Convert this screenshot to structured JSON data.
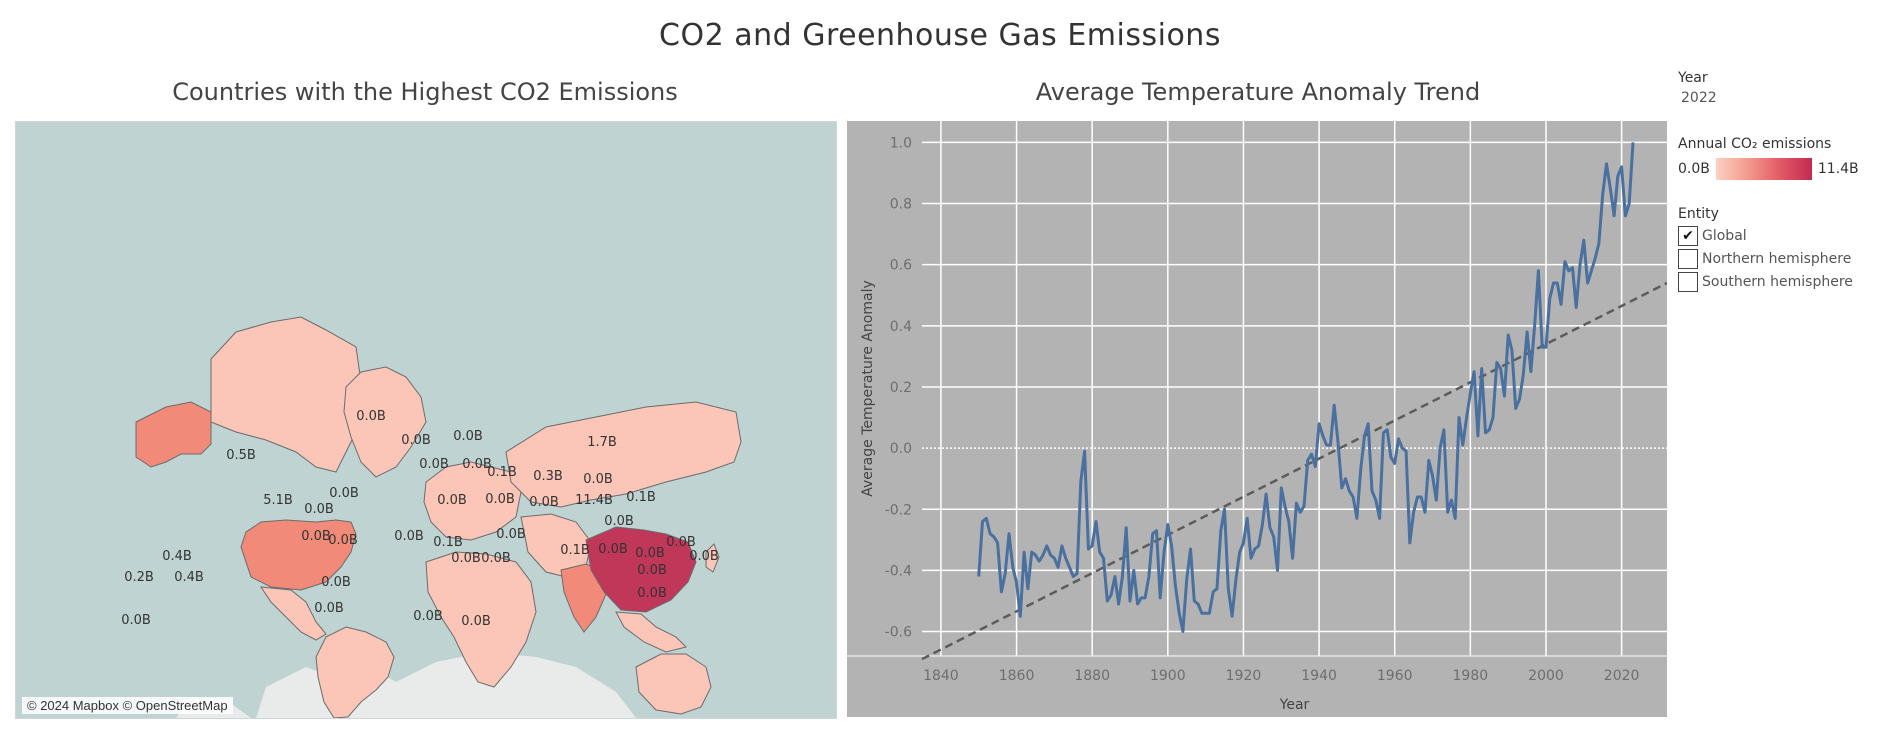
{
  "dashboard": {
    "title": "CO2 and Greenhouse Gas Emissions"
  },
  "map": {
    "title": "Countries with the Highest CO2 Emissions",
    "attribution": "© 2024 Mapbox © OpenStreetMap",
    "colors": {
      "water": "#bfd3d3",
      "land_low": "#fbc6b8",
      "land_mid": "#f18a79",
      "land_high": "#c0375a",
      "border": "#6b6b6b"
    },
    "labels": [
      "0.0B",
      "0.0B",
      "0.0B",
      "1.7B",
      "0.5B",
      "0.0B",
      "0.0B",
      "0.1B",
      "0.3B",
      "0.0B",
      "5.1B",
      "0.0B",
      "11.4B",
      "0.1B",
      "0.0B",
      "0.0B",
      "0.0B",
      "0.0B",
      "0.0B",
      "0.0B",
      "0.0B",
      "0.1B",
      "0.0B",
      "0.0B",
      "0.1B",
      "0.0B",
      "0.0B",
      "0.0B",
      "0.0B",
      "0.0B",
      "0.0B",
      "0.0B",
      "0.4B",
      "0.2B",
      "0.4B",
      "0.0B",
      "0.0B",
      "0.0B",
      "0.0B",
      "0.0B",
      "0.0B"
    ]
  },
  "chart": {
    "title": "Average Temperature Anomaly Trend"
  },
  "chart_data": {
    "type": "line",
    "title": "Average Temperature Anomaly Trend",
    "xlabel": "Year",
    "ylabel": "Average Temperature Anomaly",
    "xlim": [
      1835,
      2032
    ],
    "ylim": [
      -0.68,
      1.07
    ],
    "x_ticks": [
      1840,
      1860,
      1880,
      1900,
      1920,
      1940,
      1960,
      1980,
      2000,
      2020
    ],
    "y_ticks": [
      -0.6,
      -0.4,
      -0.2,
      0.0,
      0.2,
      0.4,
      0.6,
      0.8,
      1.0
    ],
    "grid": true,
    "series": [
      {
        "color": "#4a70a0",
        "x": [
          1850,
          1851,
          1852,
          1853,
          1854,
          1855,
          1856,
          1857,
          1858,
          1859,
          1860,
          1861,
          1862,
          1863,
          1864,
          1865,
          1866,
          1867,
          1868,
          1869,
          1870,
          1871,
          1872,
          1873,
          1874,
          1875,
          1876,
          1877,
          1878,
          1879,
          1880,
          1881,
          1882,
          1883,
          1884,
          1885,
          1886,
          1887,
          1888,
          1889,
          1890,
          1891,
          1892,
          1893,
          1894,
          1895,
          1896,
          1897,
          1898,
          1899,
          1900,
          1901,
          1902,
          1903,
          1904,
          1905,
          1906,
          1907,
          1908,
          1909,
          1910,
          1911,
          1912,
          1913,
          1914,
          1915,
          1916,
          1917,
          1918,
          1919,
          1920,
          1921,
          1922,
          1923,
          1924,
          1925,
          1926,
          1927,
          1928,
          1929,
          1930,
          1931,
          1932,
          1933,
          1934,
          1935,
          1936,
          1937,
          1938,
          1939,
          1940,
          1941,
          1942,
          1943,
          1944,
          1945,
          1946,
          1947,
          1948,
          1949,
          1950,
          1951,
          1952,
          1953,
          1954,
          1955,
          1956,
          1957,
          1958,
          1959,
          1960,
          1961,
          1962,
          1963,
          1964,
          1965,
          1966,
          1967,
          1968,
          1969,
          1970,
          1971,
          1972,
          1973,
          1974,
          1975,
          1976,
          1977,
          1978,
          1979,
          1980,
          1981,
          1982,
          1983,
          1984,
          1985,
          1986,
          1987,
          1988,
          1989,
          1990,
          1991,
          1992,
          1993,
          1994,
          1995,
          1996,
          1997,
          1998,
          1999,
          2000,
          2001,
          2002,
          2003,
          2004,
          2005,
          2006,
          2007,
          2008,
          2009,
          2010,
          2011,
          2012,
          2013,
          2014,
          2015,
          2016,
          2017,
          2018,
          2019,
          2020,
          2021,
          2022,
          2023
        ],
        "y": [
          -0.42,
          -0.24,
          -0.23,
          -0.28,
          -0.29,
          -0.31,
          -0.47,
          -0.41,
          -0.28,
          -0.39,
          -0.44,
          -0.55,
          -0.34,
          -0.46,
          -0.34,
          -0.35,
          -0.37,
          -0.35,
          -0.32,
          -0.35,
          -0.36,
          -0.39,
          -0.32,
          -0.36,
          -0.39,
          -0.42,
          -0.41,
          -0.11,
          -0.01,
          -0.33,
          -0.32,
          -0.24,
          -0.34,
          -0.36,
          -0.5,
          -0.48,
          -0.42,
          -0.51,
          -0.42,
          -0.26,
          -0.5,
          -0.4,
          -0.51,
          -0.49,
          -0.49,
          -0.42,
          -0.28,
          -0.27,
          -0.49,
          -0.34,
          -0.25,
          -0.32,
          -0.45,
          -0.54,
          -0.6,
          -0.43,
          -0.33,
          -0.5,
          -0.51,
          -0.54,
          -0.54,
          -0.54,
          -0.47,
          -0.46,
          -0.27,
          -0.2,
          -0.46,
          -0.55,
          -0.43,
          -0.34,
          -0.31,
          -0.23,
          -0.36,
          -0.33,
          -0.32,
          -0.25,
          -0.15,
          -0.26,
          -0.29,
          -0.4,
          -0.13,
          -0.19,
          -0.24,
          -0.36,
          -0.18,
          -0.21,
          -0.19,
          -0.04,
          -0.02,
          -0.06,
          0.08,
          0.04,
          0.01,
          0.01,
          0.14,
          0.02,
          -0.13,
          -0.1,
          -0.14,
          -0.16,
          -0.23,
          -0.07,
          0.04,
          0.08,
          -0.14,
          -0.17,
          -0.23,
          0.05,
          0.06,
          -0.03,
          -0.05,
          0.03,
          0.0,
          -0.01,
          -0.31,
          -0.21,
          -0.16,
          -0.16,
          -0.21,
          -0.04,
          -0.09,
          -0.17,
          0.0,
          0.06,
          -0.21,
          -0.17,
          -0.23,
          0.1,
          0.01,
          0.1,
          0.18,
          0.25,
          0.04,
          0.26,
          0.05,
          0.06,
          0.1,
          0.28,
          0.26,
          0.17,
          0.37,
          0.32,
          0.13,
          0.16,
          0.24,
          0.38,
          0.25,
          0.4,
          0.58,
          0.33,
          0.33,
          0.49,
          0.54,
          0.54,
          0.47,
          0.61,
          0.58,
          0.59,
          0.46,
          0.6,
          0.68,
          0.54,
          0.58,
          0.62,
          0.67,
          0.83,
          0.93,
          0.85,
          0.76,
          0.89,
          0.92,
          0.76,
          0.8,
          1.0
        ],
        "trend": {
          "x": [
            1835,
            2032
          ],
          "y": [
            -0.69,
            0.54
          ]
        }
      }
    ]
  },
  "side_panel": {
    "year_header": "Year",
    "year_value": "2022",
    "emissions_header": "Annual CO₂ emissions",
    "legend_min": "0.0B",
    "legend_max": "11.4B",
    "entity_header": "Entity",
    "entities": [
      {
        "label": "Global",
        "checked": true,
        "mark": "✔"
      },
      {
        "label": "Northern hemisphere",
        "checked": false,
        "mark": ""
      },
      {
        "label": "Southern hemisphere",
        "checked": false,
        "mark": ""
      }
    ]
  }
}
